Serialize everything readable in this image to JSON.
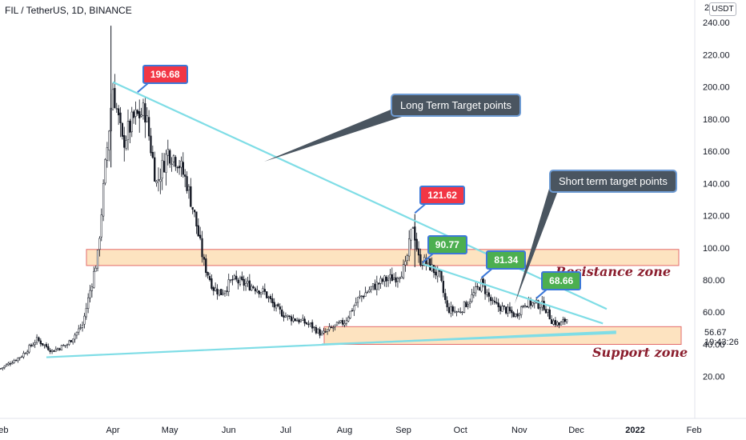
{
  "header": {
    "title": "FIL / TetherUS, 1D, BINANCE"
  },
  "currency": "USDT",
  "top_cut": "2",
  "current_price": "56.67",
  "countdown": "19:43:26",
  "callouts": {
    "long_term": "Long Term Target points",
    "short_term": "Short term target points"
  },
  "zones": {
    "resistance": "Resistance zone",
    "support": "Support zone"
  },
  "colors": {
    "trend": "#7fdde6",
    "zone_fill": "#fde3c0",
    "zone_border": "#e36b6b",
    "candle": "#131722",
    "callout_bg": "#4a5560"
  },
  "chart_data": {
    "type": "candlestick",
    "title": "FIL / TetherUS, 1D, BINANCE",
    "y_ticks": [
      20,
      40,
      60,
      80,
      100,
      120,
      140,
      160,
      180,
      200,
      220,
      240
    ],
    "y_tick_labels": [
      "20.00",
      "40.00",
      "60.00",
      "80.00",
      "100.00",
      "120.00",
      "140.00",
      "160.00",
      "180.00",
      "200.00",
      "220.00",
      "240.00"
    ],
    "ylim": [
      -6,
      254
    ],
    "x_labels": [
      "Feb",
      "Apr",
      "May",
      "Jun",
      "Jul",
      "Aug",
      "Sep",
      "Oct",
      "Nov",
      "Dec",
      "2022",
      "Feb"
    ],
    "x_label_dates": [
      "2021-02-01",
      "2021-04-01",
      "2021-05-01",
      "2021-06-01",
      "2021-07-01",
      "2021-08-01",
      "2021-09-01",
      "2021-10-01",
      "2021-11-01",
      "2021-12-01",
      "2022-01-01",
      "2022-02-01"
    ],
    "price_path": [
      [
        "2021-02-01",
        25
      ],
      [
        "2021-02-12",
        33
      ],
      [
        "2021-02-20",
        43
      ],
      [
        "2021-02-28",
        36
      ],
      [
        "2021-03-08",
        40
      ],
      [
        "2021-03-16",
        52
      ],
      [
        "2021-03-24",
        95
      ],
      [
        "2021-03-28",
        150
      ],
      [
        "2021-04-01",
        200
      ],
      [
        "2021-04-06",
        165
      ],
      [
        "2021-04-12",
        180
      ],
      [
        "2021-04-18",
        185
      ],
      [
        "2021-04-24",
        140
      ],
      [
        "2021-04-30",
        160
      ],
      [
        "2021-05-05",
        155
      ],
      [
        "2021-05-10",
        140
      ],
      [
        "2021-05-14",
        120
      ],
      [
        "2021-05-19",
        90
      ],
      [
        "2021-05-24",
        75
      ],
      [
        "2021-05-28",
        72
      ],
      [
        "2021-06-03",
        80
      ],
      [
        "2021-06-08",
        78
      ],
      [
        "2021-06-14",
        76
      ],
      [
        "2021-06-20",
        72
      ],
      [
        "2021-06-26",
        62
      ],
      [
        "2021-07-02",
        57
      ],
      [
        "2021-07-08",
        55
      ],
      [
        "2021-07-14",
        52
      ],
      [
        "2021-07-20",
        46
      ],
      [
        "2021-07-25",
        50
      ],
      [
        "2021-08-01",
        54
      ],
      [
        "2021-08-08",
        68
      ],
      [
        "2021-08-15",
        75
      ],
      [
        "2021-08-22",
        80
      ],
      [
        "2021-08-28",
        82
      ],
      [
        "2021-09-02",
        88
      ],
      [
        "2021-09-06",
        115
      ],
      [
        "2021-09-09",
        93
      ],
      [
        "2021-09-14",
        90
      ],
      [
        "2021-09-20",
        82
      ],
      [
        "2021-09-24",
        62
      ],
      [
        "2021-09-30",
        60
      ],
      [
        "2021-10-06",
        68
      ],
      [
        "2021-10-12",
        78
      ],
      [
        "2021-10-18",
        65
      ],
      [
        "2021-10-24",
        62
      ],
      [
        "2021-10-30",
        58
      ],
      [
        "2021-11-04",
        66
      ],
      [
        "2021-11-10",
        65
      ],
      [
        "2021-11-14",
        64
      ],
      [
        "2021-11-18",
        55
      ],
      [
        "2021-11-22",
        52
      ],
      [
        "2021-11-27",
        56.67
      ]
    ],
    "annotations": [
      {
        "text": "196.68",
        "date": "2021-04-14",
        "value": 196.68,
        "color": "red"
      },
      {
        "text": "121.62",
        "date": "2021-09-07",
        "value": 121.62,
        "color": "red"
      },
      {
        "text": "90.77",
        "date": "2021-09-11",
        "value": 90.77,
        "color": "green"
      },
      {
        "text": "81.34",
        "date": "2021-10-12",
        "value": 81.34,
        "color": "green"
      },
      {
        "text": "68.66",
        "date": "2021-11-10",
        "value": 68.66,
        "color": "green"
      }
    ],
    "trend_lines": [
      {
        "name": "long-term-resistance",
        "from": [
          "2021-04-01",
          203
        ],
        "to": [
          "2021-12-17",
          62
        ]
      },
      {
        "name": "short-term-resistance",
        "from": [
          "2021-09-11",
          90
        ],
        "to": [
          "2021-12-15",
          53
        ]
      },
      {
        "name": "support-trend",
        "from": [
          "2021-02-25",
          32
        ],
        "to": [
          "2021-12-22",
          48
        ]
      },
      {
        "name": "support-trend-2",
        "from": [
          "2021-07-20",
          40
        ],
        "to": [
          "2021-12-22",
          47
        ]
      }
    ],
    "resistance_zone": [
      89,
      99
    ],
    "support_zone": [
      40,
      51
    ]
  }
}
